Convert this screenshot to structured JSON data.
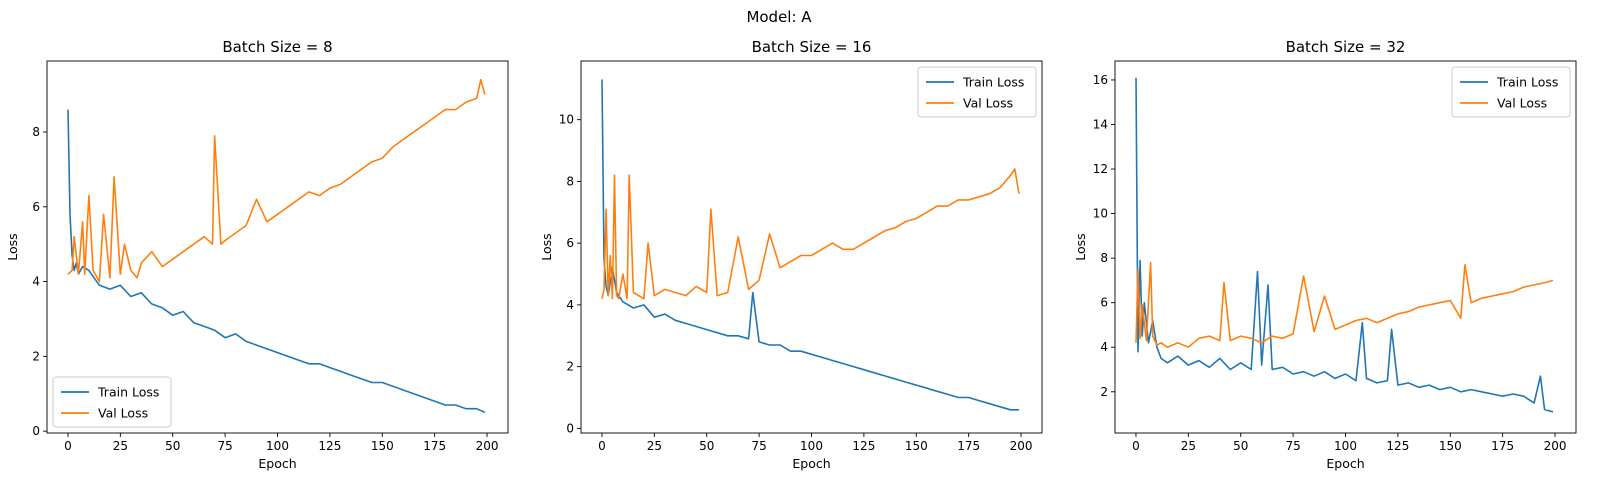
{
  "figure": {
    "suptitle": "Model: A"
  },
  "colors": {
    "train": "#1f77b4",
    "val": "#ff7f0e"
  },
  "chart_data": [
    {
      "type": "line",
      "title": "Batch Size = 8",
      "xlabel": "Epoch",
      "ylabel": "Loss",
      "xlim": [
        -10,
        210
      ],
      "ylim": [
        -0.05,
        9.9
      ],
      "xticks": [
        0,
        25,
        50,
        75,
        100,
        125,
        150,
        175,
        200
      ],
      "yticks": [
        0,
        2,
        4,
        6,
        8
      ],
      "legend": {
        "position": "lower left",
        "entries": [
          "Train Loss",
          "Val Loss"
        ]
      },
      "series": [
        {
          "name": "Train Loss",
          "x": [
            0,
            1,
            2,
            3,
            4,
            5,
            7,
            10,
            15,
            20,
            25,
            30,
            35,
            40,
            45,
            50,
            55,
            60,
            65,
            70,
            75,
            80,
            85,
            90,
            95,
            100,
            105,
            110,
            115,
            120,
            125,
            130,
            135,
            140,
            145,
            150,
            155,
            160,
            165,
            170,
            175,
            180,
            185,
            190,
            195,
            199
          ],
          "y": [
            8.6,
            5.8,
            4.7,
            4.3,
            4.5,
            4.2,
            4.4,
            4.3,
            3.9,
            3.8,
            3.9,
            3.6,
            3.7,
            3.4,
            3.3,
            3.1,
            3.2,
            2.9,
            2.8,
            2.7,
            2.5,
            2.6,
            2.4,
            2.3,
            2.2,
            2.1,
            2.0,
            1.9,
            1.8,
            1.8,
            1.7,
            1.6,
            1.5,
            1.4,
            1.3,
            1.3,
            1.2,
            1.1,
            1.0,
            0.9,
            0.8,
            0.7,
            0.7,
            0.6,
            0.6,
            0.5
          ]
        },
        {
          "name": "Val Loss",
          "x": [
            0,
            2,
            3,
            5,
            7,
            8,
            10,
            12,
            15,
            17,
            20,
            22,
            25,
            27,
            30,
            33,
            35,
            40,
            45,
            50,
            55,
            60,
            65,
            69,
            70,
            73,
            75,
            80,
            85,
            90,
            95,
            100,
            105,
            110,
            115,
            120,
            125,
            130,
            135,
            140,
            145,
            150,
            155,
            160,
            165,
            170,
            175,
            180,
            185,
            190,
            195,
            197,
            199
          ],
          "y": [
            4.2,
            4.3,
            5.2,
            4.2,
            5.6,
            4.2,
            6.3,
            4.3,
            4.0,
            5.8,
            4.1,
            6.8,
            4.2,
            5.0,
            4.3,
            4.1,
            4.5,
            4.8,
            4.4,
            4.6,
            4.8,
            5.0,
            5.2,
            5.0,
            7.9,
            5.0,
            5.1,
            5.3,
            5.5,
            6.2,
            5.6,
            5.8,
            6.0,
            6.2,
            6.4,
            6.3,
            6.5,
            6.6,
            6.8,
            7.0,
            7.2,
            7.3,
            7.6,
            7.8,
            8.0,
            8.2,
            8.4,
            8.6,
            8.6,
            8.8,
            8.9,
            9.4,
            9.0
          ]
        }
      ]
    },
    {
      "type": "line",
      "title": "Batch Size = 16",
      "xlabel": "Epoch",
      "ylabel": "Loss",
      "xlim": [
        -10,
        210
      ],
      "ylim": [
        -0.15,
        11.9
      ],
      "xticks": [
        0,
        25,
        50,
        75,
        100,
        125,
        150,
        175,
        200
      ],
      "yticks": [
        0,
        2,
        4,
        6,
        8,
        10
      ],
      "legend": {
        "position": "upper right",
        "entries": [
          "Train Loss",
          "Val Loss"
        ]
      },
      "series": [
        {
          "name": "Train Loss",
          "x": [
            0,
            1,
            2,
            3,
            5,
            7,
            10,
            15,
            20,
            25,
            30,
            35,
            40,
            45,
            50,
            55,
            60,
            65,
            70,
            72,
            75,
            80,
            85,
            90,
            95,
            100,
            105,
            110,
            115,
            120,
            125,
            130,
            135,
            140,
            145,
            150,
            155,
            160,
            165,
            170,
            175,
            180,
            185,
            190,
            195,
            199
          ],
          "y": [
            11.3,
            5.5,
            4.6,
            4.3,
            5.2,
            4.4,
            4.1,
            3.9,
            4.0,
            3.6,
            3.7,
            3.5,
            3.4,
            3.3,
            3.2,
            3.1,
            3.0,
            3.0,
            2.9,
            4.4,
            2.8,
            2.7,
            2.7,
            2.5,
            2.5,
            2.4,
            2.3,
            2.2,
            2.1,
            2.0,
            1.9,
            1.8,
            1.7,
            1.6,
            1.5,
            1.4,
            1.3,
            1.2,
            1.1,
            1.0,
            1.0,
            0.9,
            0.8,
            0.7,
            0.6,
            0.6
          ]
        },
        {
          "name": "Val Loss",
          "x": [
            0,
            1,
            2,
            3,
            4,
            5,
            6,
            7,
            8,
            10,
            12,
            13,
            15,
            20,
            22,
            25,
            30,
            35,
            40,
            45,
            50,
            52,
            55,
            60,
            65,
            70,
            75,
            80,
            85,
            90,
            95,
            100,
            105,
            110,
            115,
            120,
            125,
            130,
            135,
            140,
            145,
            150,
            155,
            160,
            165,
            170,
            175,
            180,
            185,
            190,
            195,
            197,
            199
          ],
          "y": [
            4.2,
            4.5,
            7.1,
            4.3,
            5.6,
            4.2,
            8.2,
            4.3,
            4.2,
            5.0,
            4.2,
            8.2,
            4.4,
            4.2,
            6.0,
            4.3,
            4.5,
            4.4,
            4.3,
            4.6,
            4.4,
            7.1,
            4.3,
            4.4,
            6.2,
            4.5,
            4.8,
            6.3,
            5.2,
            5.4,
            5.6,
            5.6,
            5.8,
            6.0,
            5.8,
            5.8,
            6.0,
            6.2,
            6.4,
            6.5,
            6.7,
            6.8,
            7.0,
            7.2,
            7.2,
            7.4,
            7.4,
            7.5,
            7.6,
            7.8,
            8.2,
            8.4,
            7.6
          ]
        }
      ]
    },
    {
      "type": "line",
      "title": "Batch Size = 32",
      "xlabel": "Epoch",
      "ylabel": "Loss",
      "xlim": [
        -10,
        210
      ],
      "ylim": [
        0.15,
        16.85
      ],
      "xticks": [
        0,
        25,
        50,
        75,
        100,
        125,
        150,
        175,
        200
      ],
      "yticks": [
        2,
        4,
        6,
        8,
        10,
        12,
        14,
        16
      ],
      "legend": {
        "position": "upper right",
        "entries": [
          "Train Loss",
          "Val Loss"
        ]
      },
      "series": [
        {
          "name": "Train Loss",
          "x": [
            0,
            1,
            2,
            3,
            4,
            6,
            8,
            10,
            12,
            15,
            20,
            25,
            30,
            35,
            40,
            45,
            50,
            55,
            58,
            60,
            63,
            65,
            70,
            75,
            80,
            85,
            90,
            95,
            100,
            105,
            108,
            110,
            115,
            120,
            122,
            125,
            130,
            135,
            140,
            145,
            150,
            155,
            160,
            165,
            170,
            175,
            180,
            185,
            190,
            193,
            195,
            199
          ],
          "y": [
            16.1,
            3.8,
            7.9,
            4.5,
            6.0,
            4.2,
            5.2,
            4.0,
            3.5,
            3.3,
            3.6,
            3.2,
            3.4,
            3.1,
            3.5,
            3.0,
            3.3,
            3.0,
            7.4,
            3.2,
            6.8,
            3.0,
            3.1,
            2.8,
            2.9,
            2.7,
            2.9,
            2.6,
            2.8,
            2.5,
            5.1,
            2.6,
            2.4,
            2.5,
            4.8,
            2.3,
            2.4,
            2.2,
            2.3,
            2.1,
            2.2,
            2.0,
            2.1,
            2.0,
            1.9,
            1.8,
            1.9,
            1.8,
            1.5,
            2.7,
            1.2,
            1.1
          ]
        },
        {
          "name": "Val Loss",
          "x": [
            0,
            1,
            2,
            3,
            5,
            7,
            8,
            10,
            12,
            15,
            20,
            25,
            30,
            35,
            40,
            42,
            45,
            50,
            55,
            60,
            65,
            70,
            75,
            80,
            85,
            90,
            95,
            100,
            105,
            110,
            115,
            120,
            125,
            130,
            135,
            140,
            145,
            150,
            155,
            157,
            160,
            165,
            170,
            175,
            180,
            185,
            190,
            195,
            199
          ],
          "y": [
            4.2,
            7.5,
            4.4,
            5.9,
            4.3,
            7.8,
            4.5,
            4.1,
            4.2,
            4.0,
            4.2,
            4.0,
            4.4,
            4.5,
            4.3,
            6.9,
            4.3,
            4.5,
            4.4,
            4.2,
            4.5,
            4.4,
            4.6,
            7.2,
            4.7,
            6.3,
            4.8,
            5.0,
            5.2,
            5.3,
            5.1,
            5.3,
            5.5,
            5.6,
            5.8,
            5.9,
            6.0,
            6.1,
            5.3,
            7.7,
            6.0,
            6.2,
            6.3,
            6.4,
            6.5,
            6.7,
            6.8,
            6.9,
            7.0
          ]
        }
      ]
    }
  ]
}
